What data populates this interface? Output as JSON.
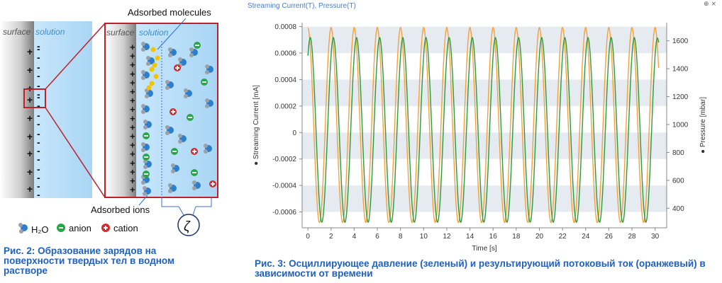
{
  "left_figure": {
    "surface_label_1": "surface",
    "solution_label_1": "solution",
    "surface_label_2": "surface",
    "solution_label_2": "solution",
    "adsorbed_molecules_label": "Adsorbed molecules",
    "adsorbed_ions_label": "Adsorbed ions",
    "zeta_symbol": "ζ",
    "legend": {
      "h2o_label": "H₂O",
      "anion_label": "anion",
      "cation_label": "cation"
    },
    "colors": {
      "surface_gray": "#8c8c8c",
      "solution_blue": "#bfe0f7",
      "frame_red": "#c0202a",
      "anion_green": "#27a846",
      "cation_red": "#d42a2a",
      "water_blue": "#2b7fd0",
      "adsorbed_yellow": "#f5c400"
    }
  },
  "left_caption": "Рис. 2: Образование зарядов на поверхности твердых тел в водном растворе",
  "right_figure": {
    "window_title": "Streaming Current(T), Pressure(T)",
    "window_controls": "⊕ ×"
  },
  "right_caption": "Рис. 3: Осциллирующее давление (зеленый) и результирующий потоковый ток (оранжевый) в зависимости от времени",
  "chart_data": {
    "type": "line",
    "title": "",
    "xlabel": "Time [s]",
    "ylabel_left": "Streaming Current [mA]",
    "ylabel_right": "Pressure [mbar]",
    "xlim": [
      -0.5,
      31
    ],
    "ylim_left": [
      -0.00072,
      0.00083
    ],
    "ylim_right": [
      260,
      1730
    ],
    "x_ticks": [
      0,
      2,
      4,
      6,
      8,
      10,
      12,
      14,
      16,
      18,
      20,
      22,
      24,
      26,
      28,
      30
    ],
    "y_ticks_left": [
      0.0008,
      0.0006,
      0.0004,
      0.0002,
      0,
      -0.0002,
      -0.0004,
      -0.0006
    ],
    "y_tick_labels_left": [
      "0.0008",
      "0.0006",
      "0.0004",
      "0.0002",
      "0",
      "-0.0002",
      "-0.0004",
      "-0.0006"
    ],
    "y_ticks_right": [
      1600,
      1400,
      1200,
      1000,
      800,
      600,
      400
    ],
    "grid": "horizontal bands",
    "series": [
      {
        "name": "Streaming Current [mA]",
        "axis": "left",
        "color": "#f5a13c",
        "period_s": 2.0,
        "peak_times_s": [
          2.0,
          4.0,
          6.0,
          8.0,
          10.0,
          12.0,
          14.0,
          16.0,
          18.0,
          20.0,
          22.0,
          24.0,
          26.0,
          28.0,
          30.0
        ],
        "max": 0.00079,
        "min": -0.00068
      },
      {
        "name": "Pressure [mbar]",
        "axis": "right",
        "color": "#2e9a3a",
        "period_s": 2.0,
        "peak_times_s": [
          0.2,
          2.2,
          4.2,
          6.2,
          8.2,
          10.2,
          12.2,
          14.2,
          16.2,
          18.2,
          20.2,
          22.2,
          24.2,
          26.2,
          28.2
        ],
        "max": 1620,
        "min": 300
      }
    ]
  }
}
